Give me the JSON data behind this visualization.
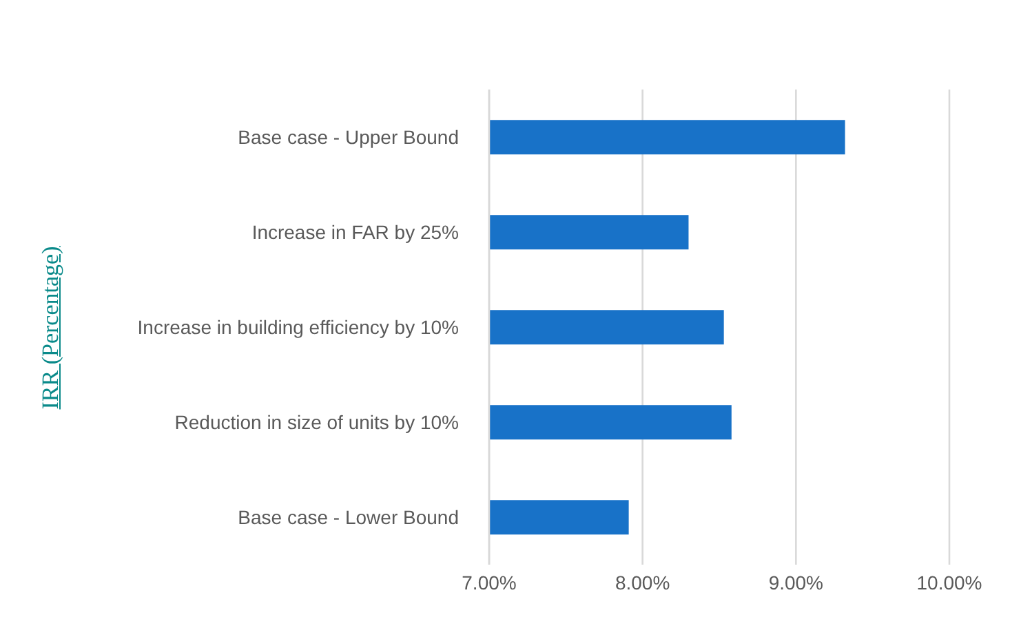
{
  "chart_data": {
    "type": "bar",
    "orientation": "horizontal",
    "ylabel": "IRR (Percentage)",
    "categories": [
      "Base case - Upper Bound",
      "Increase in FAR by 25%",
      "Increase in building efficiency by 10%",
      "Reduction in size of units by 10%",
      "Base case - Lower Bound"
    ],
    "values": [
      9.32,
      8.3,
      8.53,
      8.58,
      7.91
    ],
    "color": "#1872c8",
    "xlim": [
      7,
      10
    ],
    "xticks": [
      {
        "value": 7,
        "label": "7.00%"
      },
      {
        "value": 8,
        "label": "8.00%"
      },
      {
        "value": 9,
        "label": "9.00%"
      },
      {
        "value": 10,
        "label": "10.00%"
      }
    ],
    "grid": "x"
  }
}
